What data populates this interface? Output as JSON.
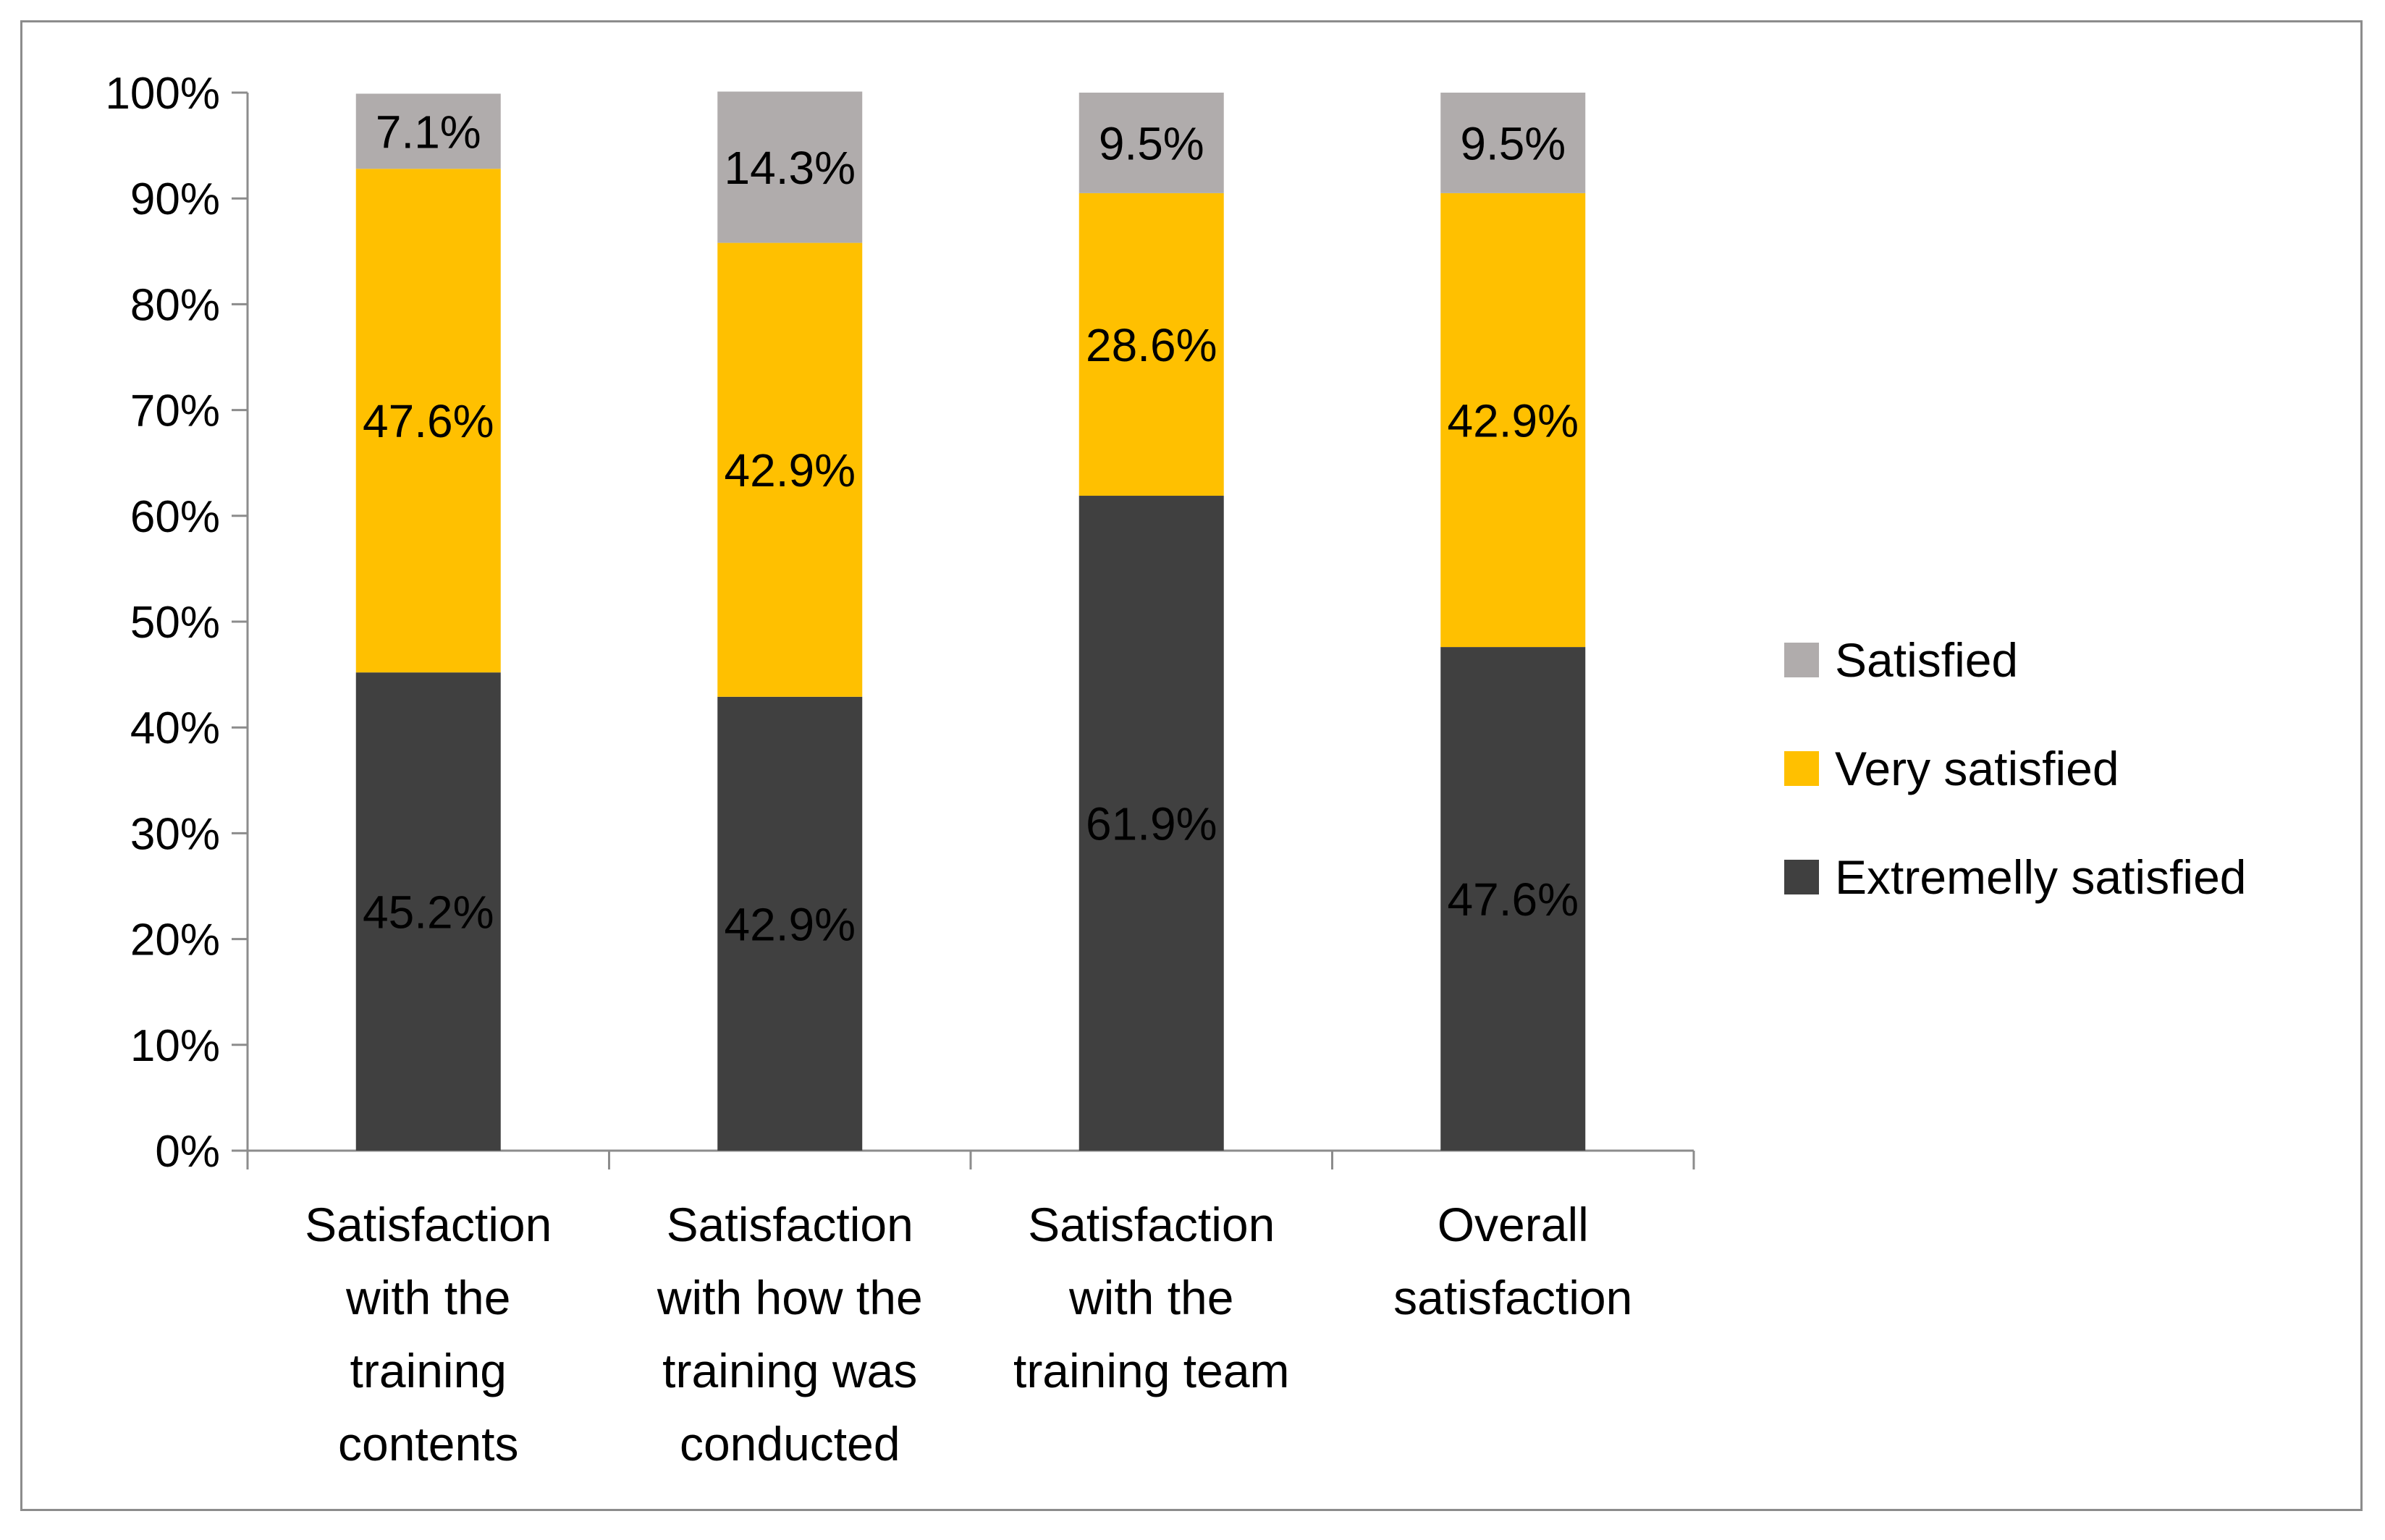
{
  "chart_data": {
    "type": "bar",
    "stacked": true,
    "title": "",
    "xlabel": "",
    "ylabel": "",
    "ylim": [
      0,
      100
    ],
    "y_ticks": [
      "0%",
      "10%",
      "20%",
      "30%",
      "40%",
      "50%",
      "60%",
      "70%",
      "80%",
      "90%",
      "100%"
    ],
    "categories": [
      [
        "Satisfaction",
        "with the",
        "training",
        "contents"
      ],
      [
        "Satisfaction",
        "with how the",
        "training was",
        "conducted"
      ],
      [
        "Satisfaction",
        "with the",
        "training team"
      ],
      [
        "Overall",
        "satisfaction"
      ]
    ],
    "series": [
      {
        "name": "Extremelly satisfied",
        "color": "#404040",
        "values": [
          45.2,
          42.9,
          61.9,
          47.6
        ],
        "labels": [
          "45.2%",
          "42.9%",
          "61.9%",
          "47.6%"
        ]
      },
      {
        "name": "Very satisfied",
        "color": "#ffc000",
        "values": [
          47.6,
          42.9,
          28.6,
          42.9
        ],
        "labels": [
          "47.6%",
          "42.9%",
          "28.6%",
          "42.9%"
        ]
      },
      {
        "name": "Satisfied",
        "color": "#b0acac",
        "values": [
          7.1,
          14.3,
          9.5,
          9.5
        ],
        "labels": [
          "7.1%",
          "14.3%",
          "9.5%",
          "9.5%"
        ]
      }
    ],
    "legend": {
      "position": "right",
      "order": [
        "Satisfied",
        "Very satisfied",
        "Extremelly satisfied"
      ]
    },
    "grid": false
  }
}
